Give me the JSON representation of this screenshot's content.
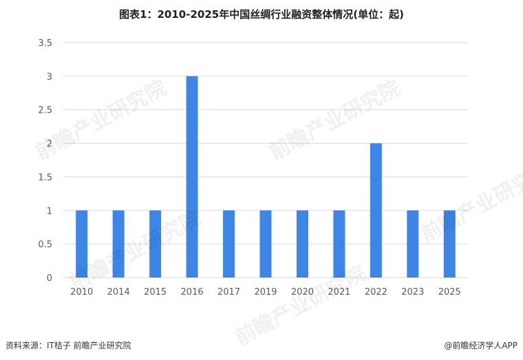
{
  "title": "图表1：2010-2025年中国丝绸行业融资整体情况(单位：起)",
  "footer": {
    "source": "资料来源：IT桔子 前瞻产业研究院",
    "brand": "@前瞻经济学人APP"
  },
  "watermark": "前瞻产业研究院",
  "colors": {
    "bar": "#3d85e6",
    "grid": "#d9d9d9"
  },
  "chart_data": {
    "type": "bar",
    "title": "图表1：2010-2025年中国丝绸行业融资整体情况(单位：起)",
    "categories": [
      "2010",
      "2014",
      "2015",
      "2016",
      "2017",
      "2019",
      "2020",
      "2021",
      "2022",
      "2023",
      "2025"
    ],
    "values": [
      1,
      1,
      1,
      3,
      1,
      1,
      1,
      1,
      2,
      1,
      1
    ],
    "ylim": [
      0,
      3.5
    ],
    "yticks": [
      "0",
      "0.5",
      "1",
      "1.5",
      "2",
      "2.5",
      "3",
      "3.5"
    ],
    "grid": true,
    "xlabel": "",
    "ylabel": ""
  }
}
